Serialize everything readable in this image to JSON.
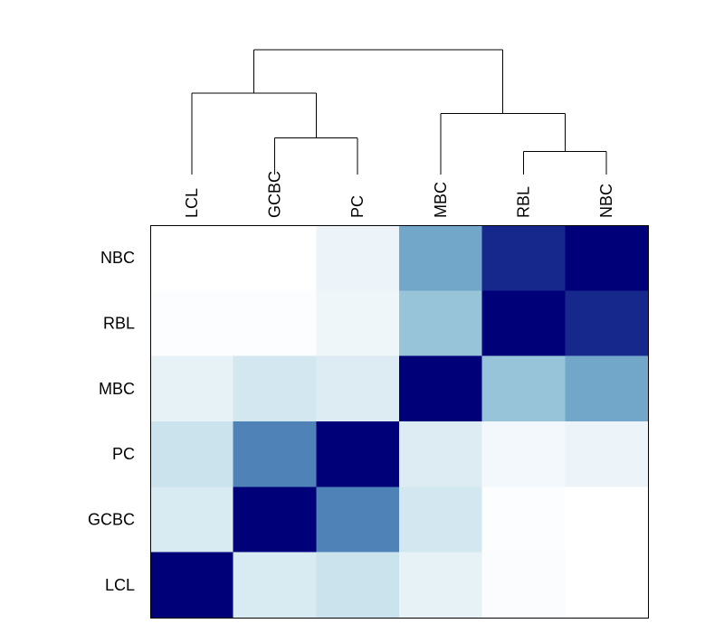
{
  "chart_data": {
    "type": "heatmap",
    "columns": [
      "LCL",
      "GCBC",
      "PC",
      "MBC",
      "RBL",
      "NBC"
    ],
    "rows_top_to_bottom": [
      "NBC",
      "RBL",
      "MBC",
      "PC",
      "GCBC",
      "LCL"
    ],
    "values": [
      [
        0.0,
        0.0,
        0.12,
        0.58,
        0.88,
        1.0
      ],
      [
        0.02,
        0.02,
        0.1,
        0.45,
        1.0,
        0.88
      ],
      [
        0.15,
        0.25,
        0.2,
        1.0,
        0.45,
        0.58
      ],
      [
        0.28,
        0.7,
        1.0,
        0.2,
        0.08,
        0.12
      ],
      [
        0.22,
        1.0,
        0.7,
        0.25,
        0.02,
        0.0
      ],
      [
        1.0,
        0.22,
        0.28,
        0.15,
        0.03,
        0.0
      ]
    ],
    "color_scale": [
      "#ffffff",
      "#e4f0f6",
      "#bfdde8",
      "#87b9d3",
      "#5b94c0",
      "#1e3894",
      "#000078"
    ],
    "dendrogram": {
      "leaves": [
        "LCL",
        "GCBC",
        "PC",
        "MBC",
        "RBL",
        "NBC"
      ],
      "merges": [
        {
          "a": "GCBC",
          "b": "PC",
          "height": 0.35
        },
        {
          "a": "RBL",
          "b": "NBC",
          "height": 0.25
        },
        {
          "a": "LCL",
          "b": "GCBC+PC",
          "height": 0.68
        },
        {
          "a": "MBC",
          "b": "RBL+NBC",
          "height": 0.53
        },
        {
          "a": "LCL+GCBC+PC",
          "b": "MBC+RBL+NBC",
          "height": 1.0
        }
      ]
    },
    "legend": "none",
    "grid": false
  }
}
